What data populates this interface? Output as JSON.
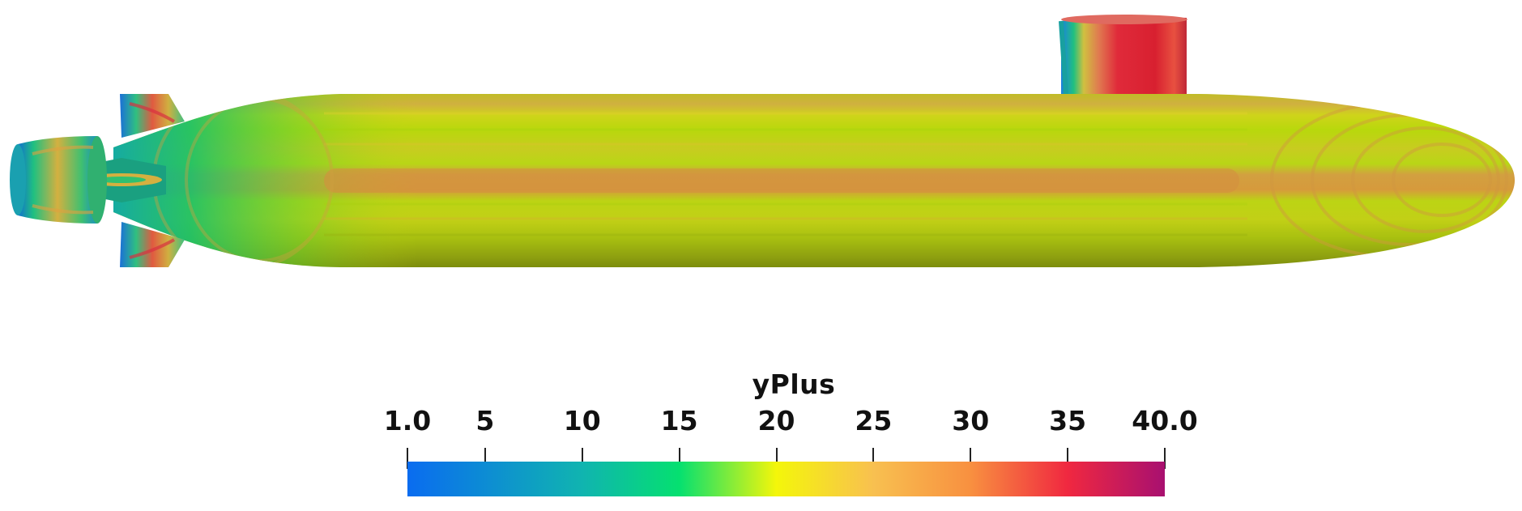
{
  "colorbar": {
    "title": "yPlus",
    "range": [
      1.0,
      40.0
    ],
    "ticks": [
      {
        "value": 1.0,
        "label": "1.0"
      },
      {
        "value": 5,
        "label": "5"
      },
      {
        "value": 10,
        "label": "10"
      },
      {
        "value": 15,
        "label": "15"
      },
      {
        "value": 20,
        "label": "20"
      },
      {
        "value": 25,
        "label": "25"
      },
      {
        "value": 30,
        "label": "30"
      },
      {
        "value": 35,
        "label": "35"
      },
      {
        "value": 40.0,
        "label": "40.0"
      }
    ],
    "colormap": [
      {
        "value": 1.0,
        "color": "#0a6cf0"
      },
      {
        "value": 10,
        "color": "#10b4b0"
      },
      {
        "value": 15,
        "color": "#05e070"
      },
      {
        "value": 20,
        "color": "#f4f60a"
      },
      {
        "value": 25,
        "color": "#f8c050"
      },
      {
        "value": 30,
        "color": "#f89040"
      },
      {
        "value": 35,
        "color": "#f02840"
      },
      {
        "value": 40.0,
        "color": "#a81070"
      }
    ]
  },
  "colors": {
    "hull_main": "#c2cf10",
    "hull_warm": "#d4a838",
    "hull_cool": "#1ab070",
    "sail_hot": "#d8283a"
  }
}
